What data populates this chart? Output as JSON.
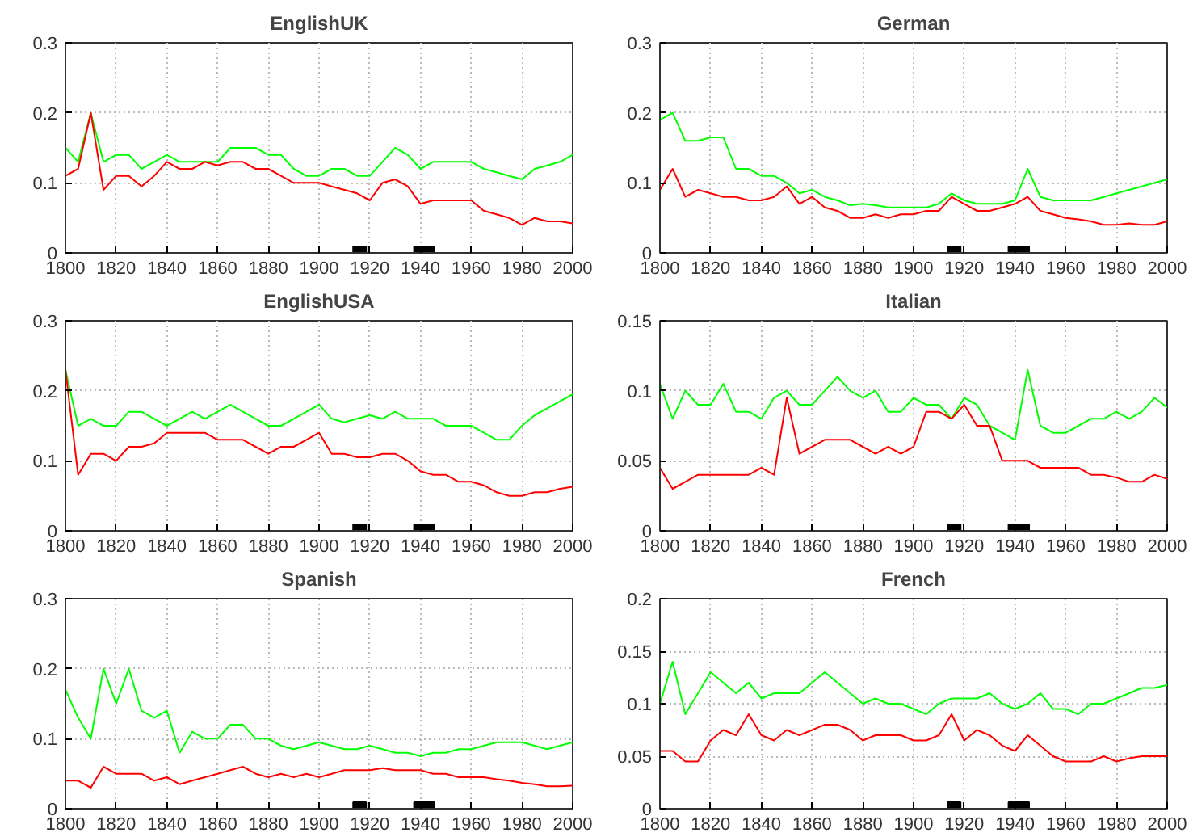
{
  "chart_data": [
    {
      "type": "line",
      "title": "EnglishUK",
      "x": [
        1800,
        1805,
        1810,
        1815,
        1820,
        1825,
        1830,
        1835,
        1840,
        1845,
        1850,
        1855,
        1860,
        1865,
        1870,
        1875,
        1880,
        1885,
        1890,
        1895,
        1900,
        1905,
        1910,
        1915,
        1920,
        1925,
        1930,
        1935,
        1940,
        1945,
        1950,
        1955,
        1960,
        1965,
        1970,
        1975,
        1980,
        1985,
        1990,
        1995,
        2000
      ],
      "xlim": [
        1800,
        2000
      ],
      "xticks": [
        1800,
        1820,
        1840,
        1860,
        1880,
        1900,
        1920,
        1940,
        1960,
        1980,
        2000
      ],
      "ylim": [
        0,
        0.3
      ],
      "yticks": [
        0,
        0.1,
        0.2,
        0.3
      ],
      "grid": true,
      "series": [
        {
          "type": "scatter",
          "marker": "square",
          "color": "#000000",
          "x": [
            1916,
            1940,
            1943
          ],
          "values": [
            0,
            0,
            0
          ]
        },
        {
          "color": "#00ff00",
          "values": [
            0.15,
            0.13,
            0.2,
            0.13,
            0.14,
            0.14,
            0.12,
            0.13,
            0.14,
            0.13,
            0.13,
            0.13,
            0.13,
            0.15,
            0.15,
            0.15,
            0.14,
            0.14,
            0.12,
            0.11,
            0.11,
            0.12,
            0.12,
            0.11,
            0.11,
            0.13,
            0.15,
            0.14,
            0.12,
            0.13,
            0.13,
            0.13,
            0.13,
            0.12,
            0.115,
            0.11,
            0.105,
            0.12,
            0.125,
            0.13,
            0.14
          ]
        },
        {
          "color": "#ff0000",
          "values": [
            0.11,
            0.12,
            0.2,
            0.09,
            0.11,
            0.11,
            0.095,
            0.11,
            0.13,
            0.12,
            0.12,
            0.13,
            0.125,
            0.13,
            0.13,
            0.12,
            0.12,
            0.11,
            0.1,
            0.1,
            0.1,
            0.095,
            0.09,
            0.085,
            0.075,
            0.1,
            0.105,
            0.095,
            0.07,
            0.075,
            0.075,
            0.075,
            0.075,
            0.06,
            0.055,
            0.05,
            0.04,
            0.05,
            0.045,
            0.045,
            0.042
          ]
        }
      ]
    },
    {
      "type": "line",
      "title": "German",
      "x": [
        1800,
        1805,
        1810,
        1815,
        1820,
        1825,
        1830,
        1835,
        1840,
        1845,
        1850,
        1855,
        1860,
        1865,
        1870,
        1875,
        1880,
        1885,
        1890,
        1895,
        1900,
        1905,
        1910,
        1915,
        1920,
        1925,
        1930,
        1935,
        1940,
        1945,
        1950,
        1955,
        1960,
        1965,
        1970,
        1975,
        1980,
        1985,
        1990,
        1995,
        2000
      ],
      "xlim": [
        1800,
        2000
      ],
      "xticks": [
        1800,
        1820,
        1840,
        1860,
        1880,
        1900,
        1920,
        1940,
        1960,
        1980,
        2000
      ],
      "ylim": [
        0,
        0.3
      ],
      "yticks": [
        0,
        0.1,
        0.2,
        0.3
      ],
      "grid": true,
      "series": [
        {
          "type": "scatter",
          "marker": "square",
          "color": "#000000",
          "x": [
            1916,
            1940,
            1943
          ],
          "values": [
            0,
            0,
            0
          ]
        },
        {
          "color": "#00ff00",
          "values": [
            0.19,
            0.2,
            0.16,
            0.16,
            0.165,
            0.165,
            0.12,
            0.12,
            0.11,
            0.11,
            0.1,
            0.085,
            0.09,
            0.08,
            0.075,
            0.068,
            0.07,
            0.068,
            0.065,
            0.065,
            0.065,
            0.065,
            0.07,
            0.085,
            0.075,
            0.07,
            0.07,
            0.07,
            0.075,
            0.12,
            0.08,
            0.075,
            0.075,
            0.075,
            0.075,
            0.08,
            0.085,
            0.09,
            0.095,
            0.1,
            0.105
          ]
        },
        {
          "color": "#ff0000",
          "values": [
            0.09,
            0.12,
            0.08,
            0.09,
            0.085,
            0.08,
            0.08,
            0.075,
            0.075,
            0.08,
            0.095,
            0.07,
            0.08,
            0.065,
            0.06,
            0.05,
            0.05,
            0.055,
            0.05,
            0.055,
            0.055,
            0.06,
            0.06,
            0.08,
            0.07,
            0.06,
            0.06,
            0.065,
            0.07,
            0.08,
            0.06,
            0.055,
            0.05,
            0.048,
            0.045,
            0.04,
            0.04,
            0.042,
            0.04,
            0.04,
            0.045
          ]
        }
      ]
    },
    {
      "type": "line",
      "title": "EnglishUSA",
      "x": [
        1800,
        1805,
        1810,
        1815,
        1820,
        1825,
        1830,
        1835,
        1840,
        1845,
        1850,
        1855,
        1860,
        1865,
        1870,
        1875,
        1880,
        1885,
        1890,
        1895,
        1900,
        1905,
        1910,
        1915,
        1920,
        1925,
        1930,
        1935,
        1940,
        1945,
        1950,
        1955,
        1960,
        1965,
        1970,
        1975,
        1980,
        1985,
        1990,
        1995,
        2000
      ],
      "xlim": [
        1800,
        2000
      ],
      "xticks": [
        1800,
        1820,
        1840,
        1860,
        1880,
        1900,
        1920,
        1940,
        1960,
        1980,
        2000
      ],
      "ylim": [
        0,
        0.3
      ],
      "yticks": [
        0,
        0.1,
        0.2,
        0.3
      ],
      "grid": true,
      "series": [
        {
          "type": "scatter",
          "marker": "square",
          "color": "#000000",
          "x": [
            1916,
            1940,
            1943
          ],
          "values": [
            0,
            0,
            0
          ]
        },
        {
          "color": "#00ff00",
          "values": [
            0.23,
            0.15,
            0.16,
            0.15,
            0.15,
            0.17,
            0.17,
            0.16,
            0.15,
            0.16,
            0.17,
            0.16,
            0.17,
            0.18,
            0.17,
            0.16,
            0.15,
            0.15,
            0.16,
            0.17,
            0.18,
            0.16,
            0.155,
            0.16,
            0.165,
            0.16,
            0.17,
            0.16,
            0.16,
            0.16,
            0.15,
            0.15,
            0.15,
            0.14,
            0.13,
            0.13,
            0.15,
            0.165,
            0.175,
            0.185,
            0.195
          ]
        },
        {
          "color": "#ff0000",
          "values": [
            0.23,
            0.08,
            0.11,
            0.11,
            0.1,
            0.12,
            0.12,
            0.125,
            0.14,
            0.14,
            0.14,
            0.14,
            0.13,
            0.13,
            0.13,
            0.12,
            0.11,
            0.12,
            0.12,
            0.13,
            0.14,
            0.11,
            0.11,
            0.105,
            0.105,
            0.11,
            0.11,
            0.1,
            0.085,
            0.08,
            0.08,
            0.07,
            0.07,
            0.065,
            0.055,
            0.05,
            0.05,
            0.055,
            0.055,
            0.06,
            0.063
          ]
        }
      ]
    },
    {
      "type": "line",
      "title": "Italian",
      "x": [
        1800,
        1805,
        1810,
        1815,
        1820,
        1825,
        1830,
        1835,
        1840,
        1845,
        1850,
        1855,
        1860,
        1865,
        1870,
        1875,
        1880,
        1885,
        1890,
        1895,
        1900,
        1905,
        1910,
        1915,
        1920,
        1925,
        1930,
        1935,
        1940,
        1945,
        1950,
        1955,
        1960,
        1965,
        1970,
        1975,
        1980,
        1985,
        1990,
        1995,
        2000
      ],
      "xlim": [
        1800,
        2000
      ],
      "xticks": [
        1800,
        1820,
        1840,
        1860,
        1880,
        1900,
        1920,
        1940,
        1960,
        1980,
        2000
      ],
      "ylim": [
        0,
        0.15
      ],
      "yticks": [
        0,
        0.05,
        0.1,
        0.15
      ],
      "grid": true,
      "series": [
        {
          "type": "scatter",
          "marker": "square",
          "color": "#000000",
          "x": [
            1916,
            1940,
            1943
          ],
          "values": [
            0,
            0,
            0
          ]
        },
        {
          "color": "#00ff00",
          "values": [
            0.105,
            0.08,
            0.1,
            0.09,
            0.09,
            0.105,
            0.085,
            0.085,
            0.08,
            0.095,
            0.1,
            0.09,
            0.09,
            0.1,
            0.11,
            0.1,
            0.095,
            0.1,
            0.085,
            0.085,
            0.095,
            0.09,
            0.09,
            0.08,
            0.095,
            0.09,
            0.075,
            0.07,
            0.065,
            0.115,
            0.075,
            0.07,
            0.07,
            0.075,
            0.08,
            0.08,
            0.085,
            0.08,
            0.085,
            0.095,
            0.088
          ]
        },
        {
          "color": "#ff0000",
          "values": [
            0.045,
            0.03,
            0.035,
            0.04,
            0.04,
            0.04,
            0.04,
            0.04,
            0.045,
            0.04,
            0.095,
            0.055,
            0.06,
            0.065,
            0.065,
            0.065,
            0.06,
            0.055,
            0.06,
            0.055,
            0.06,
            0.085,
            0.085,
            0.08,
            0.09,
            0.075,
            0.075,
            0.05,
            0.05,
            0.05,
            0.045,
            0.045,
            0.045,
            0.045,
            0.04,
            0.04,
            0.038,
            0.035,
            0.035,
            0.04,
            0.037
          ]
        }
      ]
    },
    {
      "type": "line",
      "title": "Spanish",
      "x": [
        1800,
        1805,
        1810,
        1815,
        1820,
        1825,
        1830,
        1835,
        1840,
        1845,
        1850,
        1855,
        1860,
        1865,
        1870,
        1875,
        1880,
        1885,
        1890,
        1895,
        1900,
        1905,
        1910,
        1915,
        1920,
        1925,
        1930,
        1935,
        1940,
        1945,
        1950,
        1955,
        1960,
        1965,
        1970,
        1975,
        1980,
        1985,
        1990,
        1995,
        2000
      ],
      "xlim": [
        1800,
        2000
      ],
      "xticks": [
        1800,
        1820,
        1840,
        1860,
        1880,
        1900,
        1920,
        1940,
        1960,
        1980,
        2000
      ],
      "ylim": [
        0,
        0.3
      ],
      "yticks": [
        0,
        0.1,
        0.2,
        0.3
      ],
      "grid": true,
      "series": [
        {
          "type": "scatter",
          "marker": "square",
          "color": "#000000",
          "x": [
            1916,
            1940,
            1943
          ],
          "values": [
            0,
            0,
            0
          ]
        },
        {
          "color": "#00ff00",
          "values": [
            0.17,
            0.13,
            0.1,
            0.2,
            0.15,
            0.2,
            0.14,
            0.13,
            0.14,
            0.08,
            0.11,
            0.1,
            0.1,
            0.12,
            0.12,
            0.1,
            0.1,
            0.09,
            0.085,
            0.09,
            0.095,
            0.09,
            0.085,
            0.085,
            0.09,
            0.085,
            0.08,
            0.08,
            0.075,
            0.08,
            0.08,
            0.085,
            0.085,
            0.09,
            0.095,
            0.095,
            0.095,
            0.09,
            0.085,
            0.09,
            0.095
          ]
        },
        {
          "color": "#ff0000",
          "values": [
            0.04,
            0.04,
            0.03,
            0.06,
            0.05,
            0.05,
            0.05,
            0.04,
            0.045,
            0.035,
            0.04,
            0.045,
            0.05,
            0.055,
            0.06,
            0.05,
            0.045,
            0.05,
            0.045,
            0.05,
            0.045,
            0.05,
            0.055,
            0.055,
            0.055,
            0.058,
            0.055,
            0.055,
            0.055,
            0.05,
            0.05,
            0.045,
            0.045,
            0.045,
            0.042,
            0.04,
            0.037,
            0.035,
            0.032,
            0.032,
            0.033
          ]
        }
      ]
    },
    {
      "type": "line",
      "title": "French",
      "x": [
        1800,
        1805,
        1810,
        1815,
        1820,
        1825,
        1830,
        1835,
        1840,
        1845,
        1850,
        1855,
        1860,
        1865,
        1870,
        1875,
        1880,
        1885,
        1890,
        1895,
        1900,
        1905,
        1910,
        1915,
        1920,
        1925,
        1930,
        1935,
        1940,
        1945,
        1950,
        1955,
        1960,
        1965,
        1970,
        1975,
        1980,
        1985,
        1990,
        1995,
        2000
      ],
      "xlim": [
        1800,
        2000
      ],
      "xticks": [
        1800,
        1820,
        1840,
        1860,
        1880,
        1900,
        1920,
        1940,
        1960,
        1980,
        2000
      ],
      "ylim": [
        0,
        0.2
      ],
      "yticks": [
        0,
        0.05,
        0.1,
        0.15,
        0.2
      ],
      "grid": true,
      "series": [
        {
          "type": "scatter",
          "marker": "square",
          "color": "#000000",
          "x": [
            1916,
            1940,
            1943
          ],
          "values": [
            0,
            0,
            0
          ]
        },
        {
          "color": "#00ff00",
          "values": [
            0.1,
            0.14,
            0.09,
            0.11,
            0.13,
            0.12,
            0.11,
            0.12,
            0.105,
            0.11,
            0.11,
            0.11,
            0.12,
            0.13,
            0.12,
            0.11,
            0.1,
            0.105,
            0.1,
            0.1,
            0.095,
            0.09,
            0.1,
            0.105,
            0.105,
            0.105,
            0.11,
            0.1,
            0.095,
            0.1,
            0.11,
            0.095,
            0.095,
            0.09,
            0.1,
            0.1,
            0.105,
            0.11,
            0.115,
            0.115,
            0.118
          ]
        },
        {
          "color": "#ff0000",
          "values": [
            0.055,
            0.055,
            0.045,
            0.045,
            0.065,
            0.075,
            0.07,
            0.09,
            0.07,
            0.065,
            0.075,
            0.07,
            0.075,
            0.08,
            0.08,
            0.075,
            0.065,
            0.07,
            0.07,
            0.07,
            0.065,
            0.065,
            0.07,
            0.09,
            0.065,
            0.075,
            0.07,
            0.06,
            0.055,
            0.07,
            0.06,
            0.05,
            0.045,
            0.045,
            0.045,
            0.05,
            0.045,
            0.048,
            0.05,
            0.05,
            0.05
          ]
        }
      ]
    }
  ]
}
